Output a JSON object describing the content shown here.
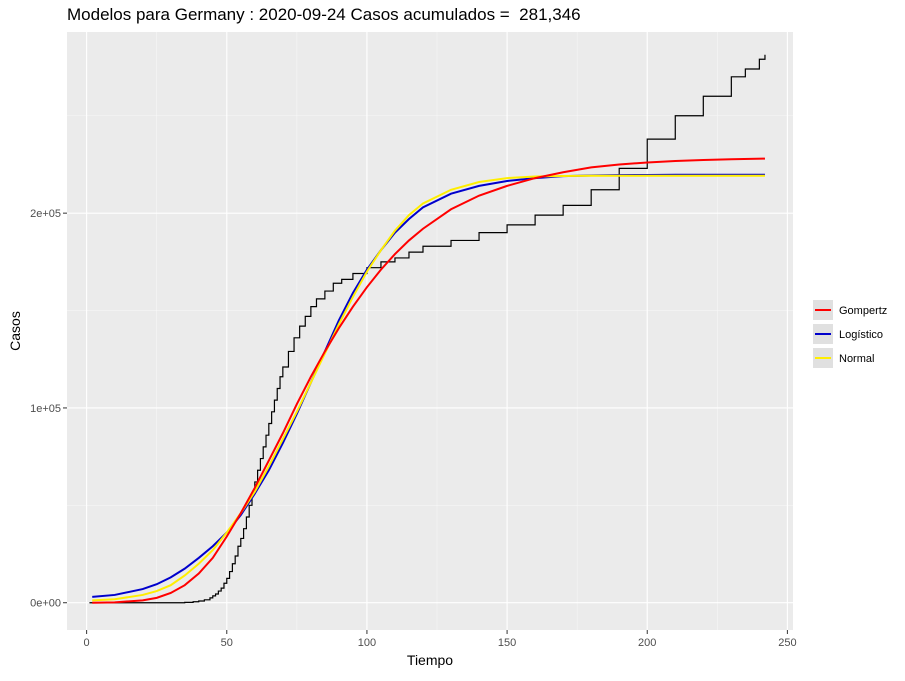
{
  "chart_data": {
    "type": "line",
    "title": "Modelos para Germany : 2020-09-24 Casos acumulados =  281,346",
    "xlabel": "Tiempo",
    "ylabel": "Casos",
    "xlim": [
      -7,
      252
    ],
    "ylim": [
      -14000,
      293000
    ],
    "x_ticks": [
      {
        "value": 0,
        "label": "0"
      },
      {
        "value": 50,
        "label": "50"
      },
      {
        "value": 100,
        "label": "100"
      },
      {
        "value": 150,
        "label": "150"
      },
      {
        "value": 200,
        "label": "200"
      },
      {
        "value": 250,
        "label": "250"
      }
    ],
    "y_ticks": [
      {
        "value": 0,
        "label": "0e+00"
      },
      {
        "value": 100000,
        "label": "1e+05"
      },
      {
        "value": 200000,
        "label": "2e+05"
      }
    ],
    "grid": true,
    "legend_position": "right",
    "observed": {
      "x": [
        1,
        30,
        35,
        38,
        40,
        42,
        44,
        45,
        46,
        47,
        48,
        49,
        50,
        51,
        52,
        53,
        54,
        55,
        56,
        57,
        58,
        59,
        60,
        61,
        62,
        63,
        64,
        65,
        66,
        67,
        68,
        69,
        70,
        72,
        74,
        76,
        78,
        80,
        82,
        85,
        88,
        91,
        95,
        100,
        105,
        110,
        115,
        120,
        130,
        140,
        150,
        160,
        170,
        180,
        190,
        200,
        210,
        220,
        230,
        235,
        240,
        242
      ],
      "y": [
        0,
        0,
        200,
        500,
        900,
        1500,
        2500,
        3500,
        4500,
        6000,
        7500,
        10000,
        12500,
        16000,
        20000,
        24000,
        29000,
        33000,
        38000,
        44000,
        50000,
        56000,
        62000,
        68000,
        74000,
        80000,
        86000,
        92000,
        98000,
        104000,
        110000,
        116000,
        121000,
        129000,
        136000,
        142000,
        147000,
        152000,
        156000,
        160000,
        164000,
        166000,
        169000,
        172000,
        175000,
        177000,
        180000,
        183000,
        186000,
        190000,
        194000,
        199000,
        204000,
        212000,
        223000,
        238000,
        250000,
        260000,
        270000,
        274000,
        279000,
        281346
      ]
    },
    "series": [
      {
        "name": "Gompertz",
        "color": "#ff0000",
        "x": [
          2,
          10,
          20,
          25,
          30,
          35,
          40,
          45,
          50,
          55,
          60,
          65,
          70,
          75,
          80,
          85,
          90,
          95,
          100,
          105,
          110,
          115,
          120,
          130,
          140,
          150,
          160,
          170,
          180,
          190,
          200,
          210,
          220,
          230,
          242
        ],
        "y": [
          0,
          200,
          1200,
          2500,
          5000,
          9000,
          15000,
          23000,
          34000,
          46000,
          59000,
          73000,
          87000,
          102000,
          116000,
          129000,
          141000,
          152000,
          162000,
          171000,
          179000,
          186000,
          192000,
          202000,
          209000,
          214000,
          218000,
          221000,
          223500,
          225000,
          226000,
          226800,
          227300,
          227700,
          228000
        ]
      },
      {
        "name": "Logístico",
        "color": "#0000cc",
        "x": [
          2,
          10,
          20,
          25,
          30,
          35,
          40,
          45,
          50,
          55,
          60,
          65,
          70,
          75,
          80,
          85,
          90,
          95,
          100,
          105,
          110,
          115,
          120,
          130,
          140,
          150,
          160,
          170,
          180,
          190,
          200,
          210,
          220,
          230,
          242
        ],
        "y": [
          3000,
          4000,
          7000,
          9500,
          13000,
          17500,
          23000,
          29000,
          36000,
          45000,
          56000,
          68000,
          82000,
          97000,
          113000,
          129000,
          145000,
          159000,
          171000,
          181000,
          190000,
          197000,
          203000,
          210000,
          214000,
          216500,
          218000,
          219000,
          219300,
          219500,
          219600,
          219700,
          219700,
          219700,
          219700
        ]
      },
      {
        "name": "Normal",
        "color": "#ffee00",
        "x": [
          2,
          10,
          20,
          25,
          30,
          35,
          40,
          45,
          50,
          55,
          60,
          65,
          70,
          75,
          80,
          85,
          90,
          95,
          100,
          105,
          110,
          115,
          120,
          130,
          140,
          150,
          160,
          170,
          180,
          190,
          200,
          210,
          220,
          230,
          242
        ],
        "y": [
          1200,
          1800,
          4000,
          6000,
          9000,
          14000,
          20000,
          27000,
          36000,
          46000,
          57000,
          70000,
          84000,
          98000,
          113000,
          128000,
          143000,
          157000,
          170000,
          181000,
          191000,
          199000,
          205000,
          212000,
          216000,
          218000,
          218800,
          219100,
          219200,
          219200,
          219200,
          219200,
          219200,
          219200,
          219200
        ]
      }
    ]
  }
}
